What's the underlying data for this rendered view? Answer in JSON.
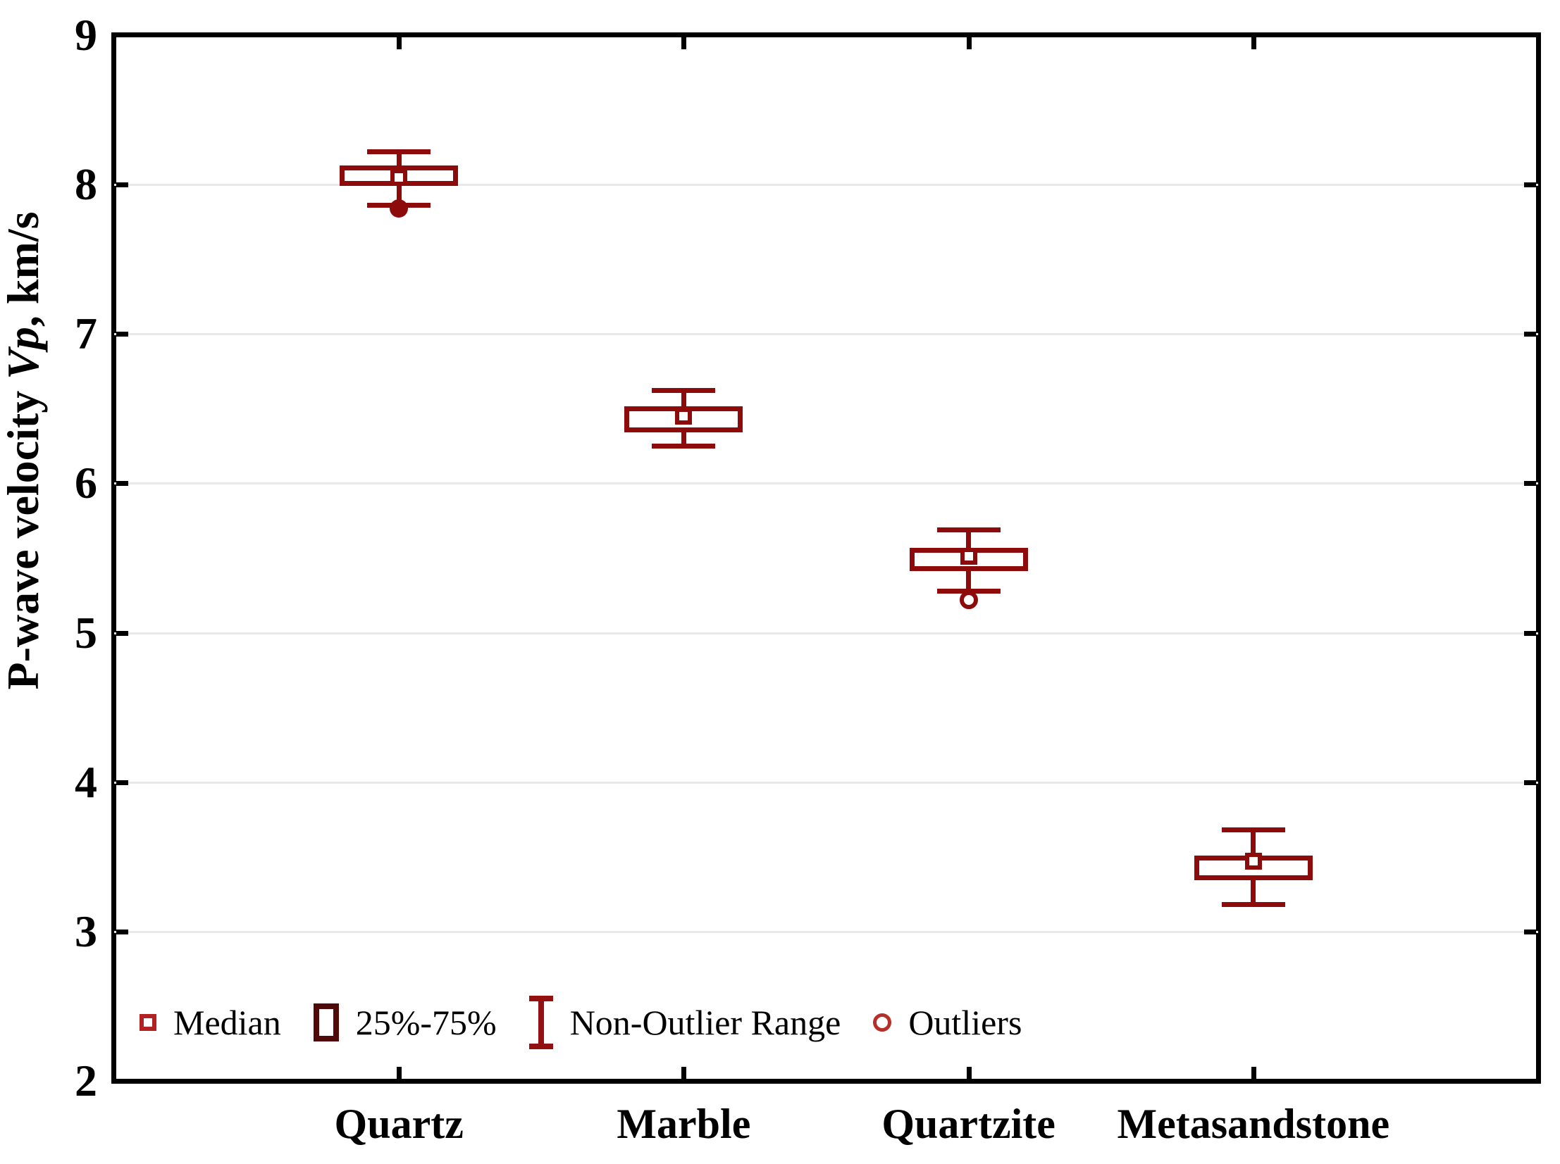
{
  "figure": {
    "background": "#ffffff",
    "frame_color": "#000000",
    "grid_color": "#e8e8e8",
    "text_color": "#000000"
  },
  "y_axis": {
    "title_prefix": "P-wave velocity ",
    "title_italic": "Vp",
    "title_suffix": ", km/s"
  },
  "chart_data": {
    "type": "boxplot",
    "title": "",
    "xlabel": "",
    "ylabel": "P-wave velocity Vp, km/s",
    "ylim": [
      2,
      9
    ],
    "yticks": [
      9,
      8,
      7,
      6,
      5,
      4,
      3,
      2
    ],
    "grid_values": [
      8,
      7,
      6,
      5,
      4,
      3
    ],
    "grid": "horizontal",
    "legend_position": "bottom-left-inside",
    "categories": [
      "Quartz",
      "Marble",
      "Quartzite",
      "Metasandstone"
    ],
    "series": [
      {
        "category": "Quartz",
        "whisker_high": 8.22,
        "q3": 8.11,
        "median": 8.05,
        "q1": 8.01,
        "whisker_low": 7.86,
        "outliers": [
          {
            "value": 7.84,
            "style": "filled"
          }
        ]
      },
      {
        "category": "Marble",
        "whisker_high": 6.62,
        "q3": 6.5,
        "median": 6.45,
        "q1": 6.36,
        "whisker_low": 6.25,
        "outliers": []
      },
      {
        "category": "Quartzite",
        "whisker_high": 5.69,
        "q3": 5.55,
        "median": 5.51,
        "q1": 5.43,
        "whisker_low": 5.28,
        "outliers": [
          {
            "value": 5.22,
            "style": "open"
          }
        ]
      },
      {
        "category": "Metasandstone",
        "whisker_high": 3.68,
        "q3": 3.49,
        "median": 3.47,
        "q1": 3.36,
        "whisker_low": 3.18,
        "outliers": []
      }
    ],
    "colors": {
      "box": "#8e0b0b",
      "legend_median": "#b22222",
      "legend_box": "#500a0a",
      "legend_whisker": "#941111",
      "legend_outlier": "#b53028"
    }
  },
  "legend": {
    "items": [
      {
        "symbol": "median-square",
        "label": "Median"
      },
      {
        "symbol": "box-25-75",
        "label": "25%-75%"
      },
      {
        "symbol": "whisker-ibeam",
        "label": "Non-Outlier Range"
      },
      {
        "symbol": "outlier-circle",
        "label": "Outliers"
      }
    ]
  }
}
